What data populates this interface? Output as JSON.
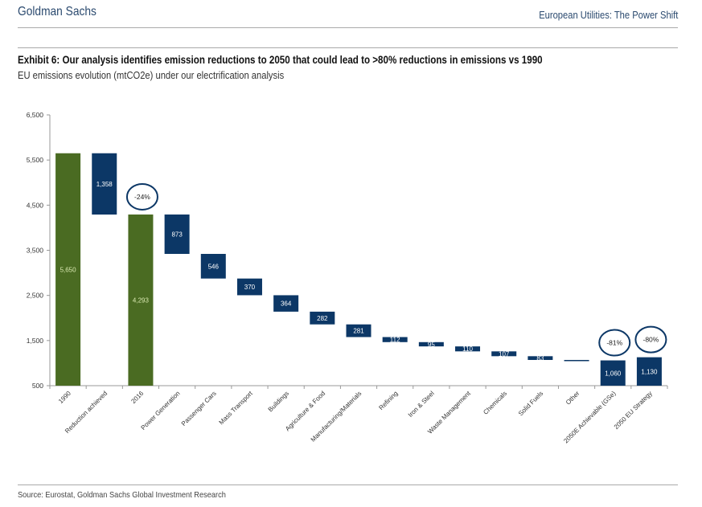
{
  "header": {
    "brand": "Goldman Sachs",
    "doc_title": "European Utilities: The Power Shift"
  },
  "exhibit": {
    "title": "Exhibit 6: Our analysis identifies emission reductions to 2050 that could lead to >80% reductions in emissions vs 1990",
    "subtitle": "EU emissions evolution (mtCO2e) under our electrification analysis"
  },
  "source": "Source: Eurostat, Goldman Sachs Global Investment Research",
  "colors": {
    "total_green": "#4a6b22",
    "navy": "#0c3766",
    "axis": "#999999"
  },
  "chart_data": {
    "type": "bar",
    "subtype": "waterfall",
    "title": "",
    "xlabel": "",
    "ylabel": "",
    "ylim": [
      500,
      6500
    ],
    "yticks": [
      500,
      1500,
      2500,
      3500,
      4500,
      5500,
      6500
    ],
    "ytick_labels": [
      "500",
      "1,500",
      "2,500",
      "3,500",
      "4,500",
      "5,500",
      "6,500"
    ],
    "grid": false,
    "categories": [
      "1990",
      "Reduction achieved",
      "2016",
      "Power Generation",
      "Passenger Cars",
      "Mass Transport",
      "Buildings",
      "Agriculture & Food",
      "Manufacturing/Materials",
      "Refining",
      "Iron & Steel",
      "Waste Management",
      "Chemicals",
      "Solid Fuels",
      "Other",
      "2050E Achievable (GSe)",
      "2050 EU Strategy"
    ],
    "values": [
      5650,
      1358,
      4293,
      873,
      546,
      370,
      364,
      282,
      281,
      112,
      95,
      110,
      107,
      83,
      10,
      1060,
      1130
    ],
    "kinds": [
      "total",
      "decrease",
      "total",
      "decrease",
      "decrease",
      "decrease",
      "decrease",
      "decrease",
      "decrease",
      "decrease",
      "decrease",
      "decrease",
      "decrease",
      "decrease",
      "decrease",
      "total",
      "total"
    ],
    "bar_colors": [
      "green",
      "navy",
      "green",
      "navy",
      "navy",
      "navy",
      "navy",
      "navy",
      "navy",
      "navy",
      "navy",
      "navy",
      "navy",
      "navy",
      "navy",
      "navy",
      "navy"
    ],
    "data_labels": [
      "5,650",
      "1,358",
      "4,293",
      "873",
      "546",
      "370",
      "364",
      "282",
      "281",
      "112",
      "95",
      "110",
      "107",
      "83",
      "",
      "1,060",
      "1,130"
    ],
    "annotations": [
      {
        "category": "2016",
        "text": "-24%"
      },
      {
        "category": "2050E Achievable (GSe)",
        "text": "-81%"
      },
      {
        "category": "2050 EU Strategy",
        "text": "-80%"
      }
    ]
  }
}
